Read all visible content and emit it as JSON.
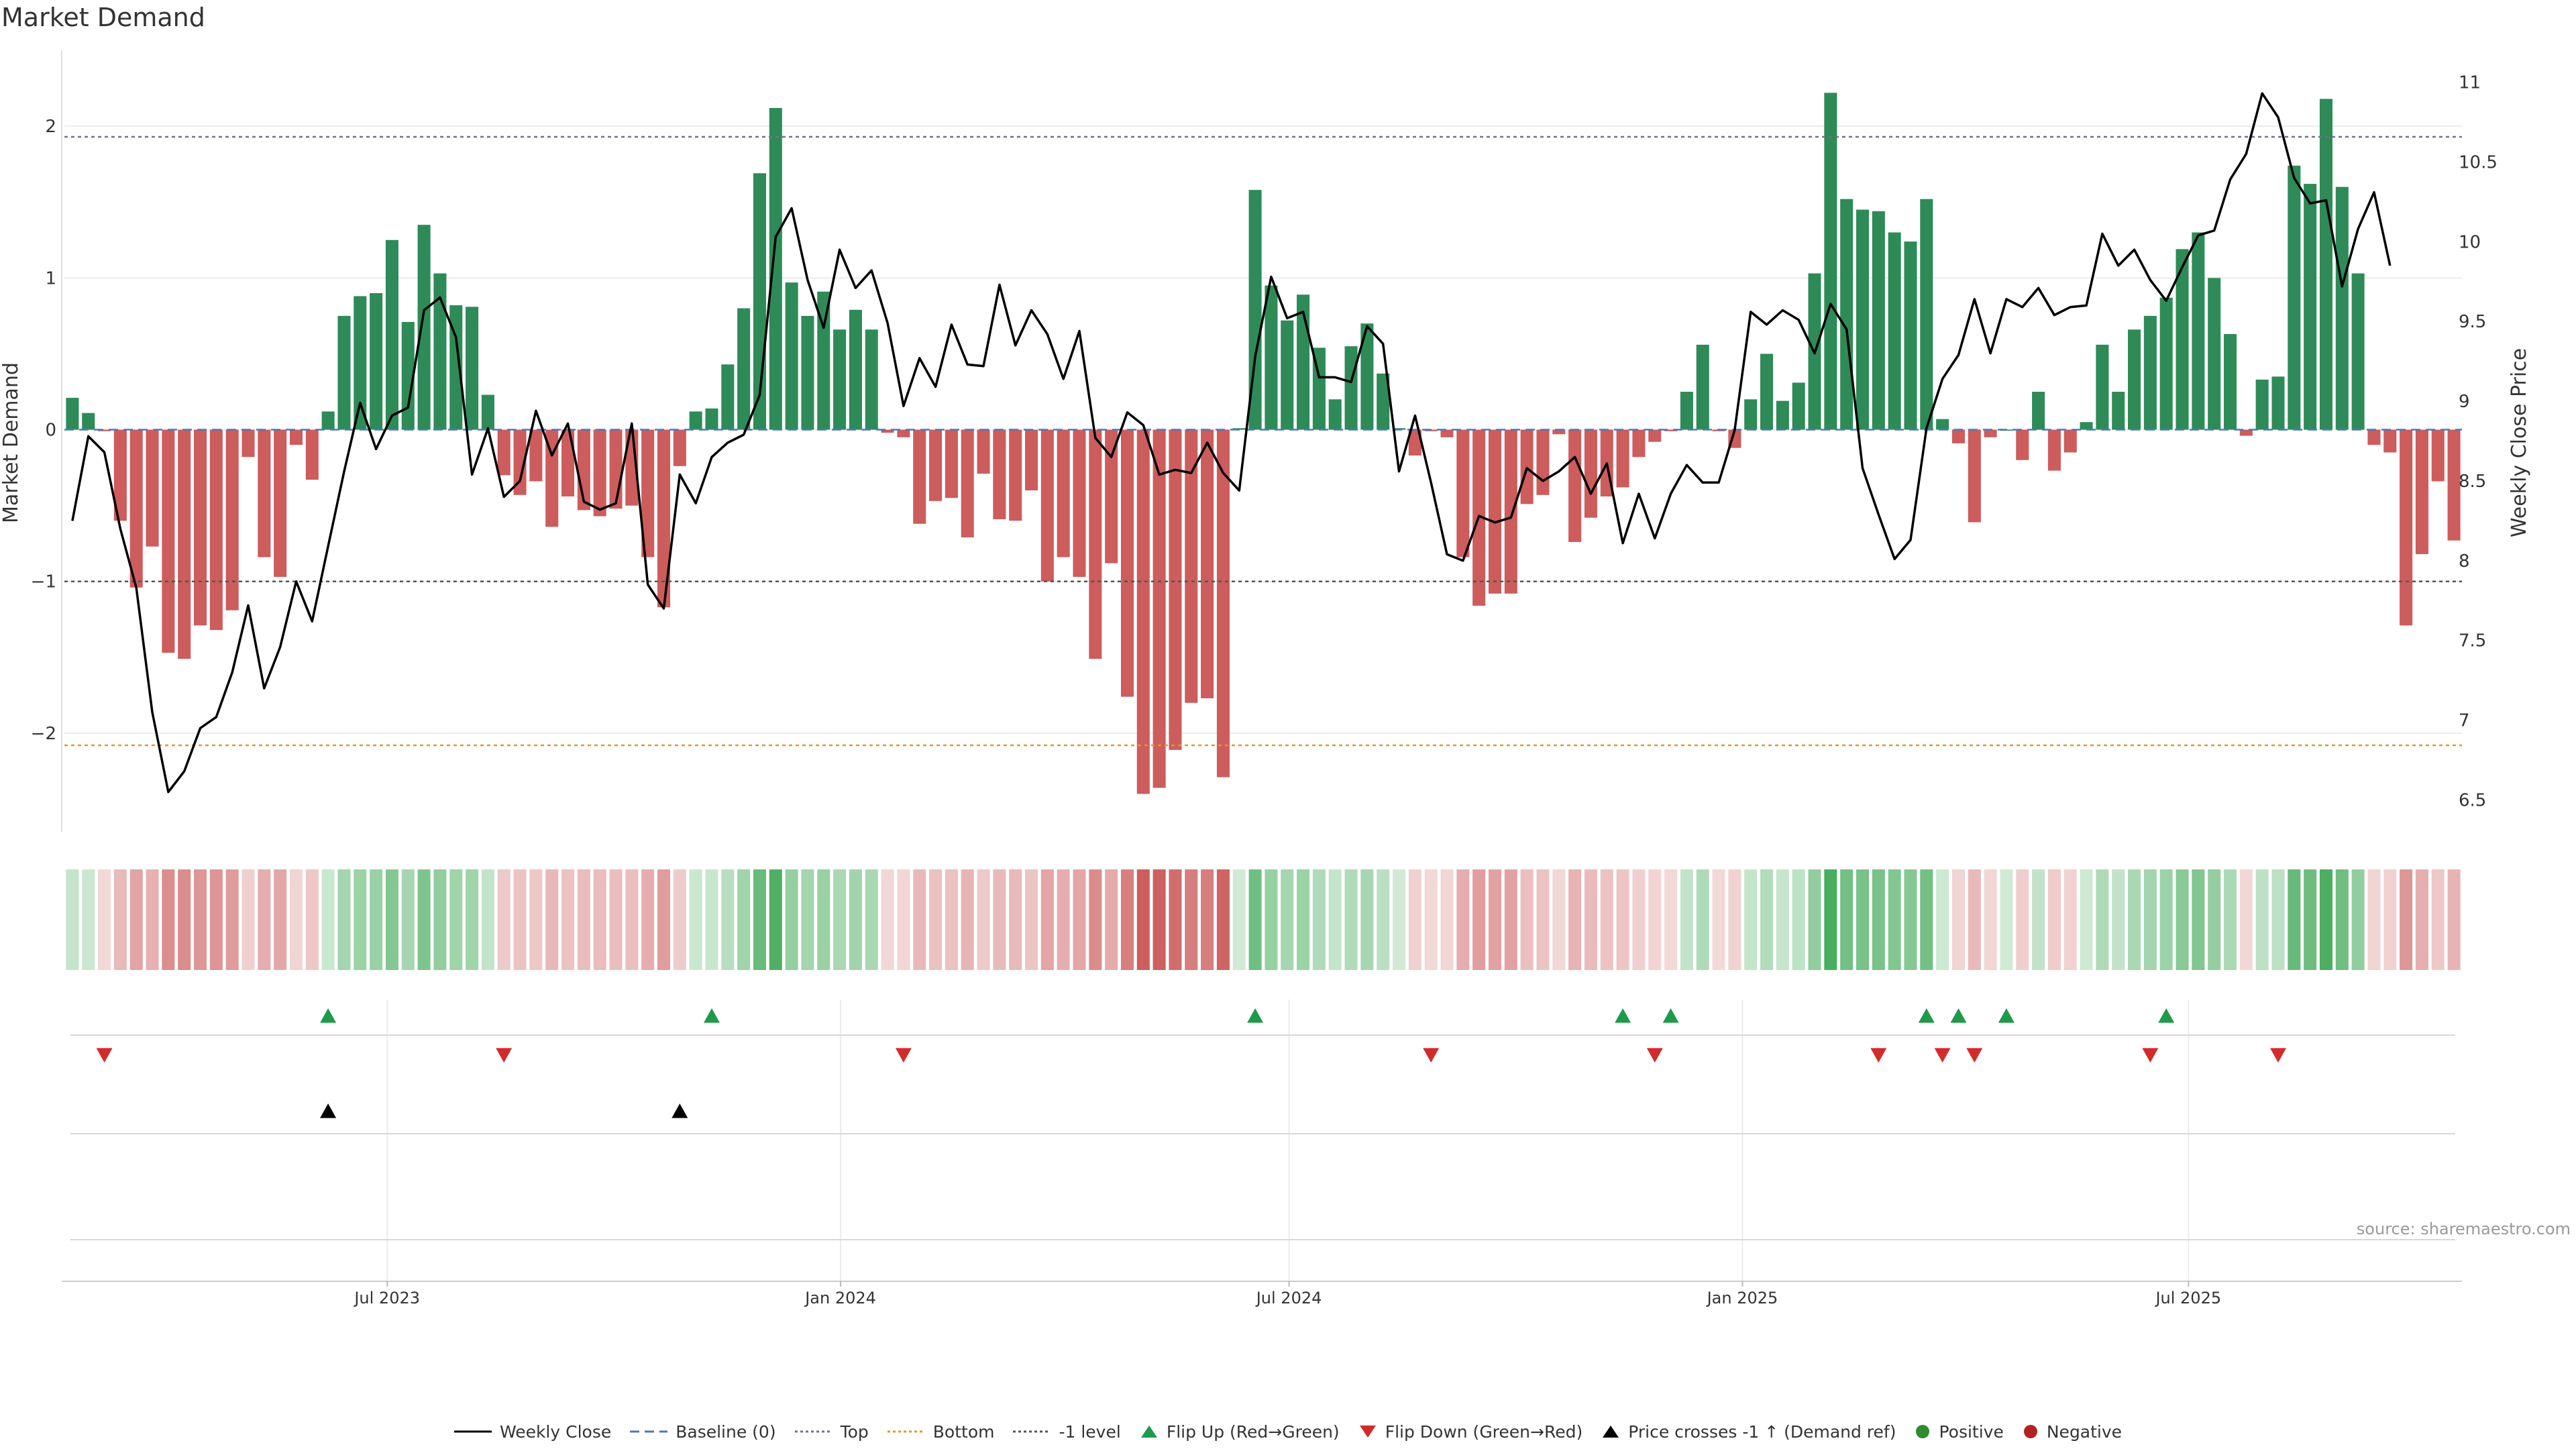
{
  "title": "Market Demand",
  "source": "source: sharemaestro.com",
  "colors": {
    "positive": "#2e8b57",
    "negative": "#cd5c5c",
    "price": "#000000",
    "baseline": "#4a78c0",
    "top": "#707090",
    "bottom": "#e6962d",
    "flip_up": "#1f9a4a",
    "flip_down": "#d22b2b",
    "cross": "#000000",
    "pos_dot": "#2e8b2e",
    "neg_dot": "#b22222"
  },
  "chart_data": {
    "type": "bar+line",
    "title": "Market Demand",
    "ylabel_left": "Market Demand",
    "ylabel_right": "Weekly Close Price",
    "left_ylim": [
      -2.65,
      2.5
    ],
    "left_yticks": [
      2,
      1,
      0,
      -1,
      -2
    ],
    "left_ytick_labels": [
      "2",
      "1",
      "0",
      "−1",
      "−2"
    ],
    "right_ylim": [
      6.3,
      11.2
    ],
    "right_yticks": [
      6.5,
      7,
      7.5,
      8,
      8.5,
      9,
      9.5,
      10,
      10.5,
      11
    ],
    "right_ytick_labels": [
      "6.5",
      "7",
      "7.5",
      "8",
      "8.5",
      "9",
      "9.5",
      "10",
      "10.5",
      "11"
    ],
    "x_start": "2023-02-20",
    "x_end": "2025-10-20",
    "x_ticks": [
      {
        "date": "2023-07-01",
        "label": "Jul 2023"
      },
      {
        "date": "2024-01-01",
        "label": "Jan 2024"
      },
      {
        "date": "2024-07-01",
        "label": "Jul 2024"
      },
      {
        "date": "2025-01-01",
        "label": "Jan 2025"
      },
      {
        "date": "2025-07-01",
        "label": "Jul 2025"
      }
    ],
    "levels": {
      "top": 1.93,
      "bottom": -2.08,
      "minus_one": -1,
      "baseline": 0
    },
    "demand": [
      0.21,
      0.11,
      -0.01,
      -0.6,
      -1.04,
      -0.77,
      -1.47,
      -1.51,
      -1.29,
      -1.32,
      -1.19,
      -0.18,
      -0.84,
      -0.97,
      -0.1,
      -0.33,
      0.12,
      0.75,
      0.88,
      0.9,
      1.25,
      0.71,
      1.35,
      1.03,
      0.82,
      0.81,
      0.23,
      -0.3,
      -0.43,
      -0.34,
      -0.64,
      -0.44,
      -0.53,
      -0.57,
      -0.52,
      -0.5,
      -0.84,
      -1.17,
      -0.24,
      0.12,
      0.14,
      0.43,
      0.8,
      1.69,
      2.12,
      0.97,
      0.75,
      0.91,
      0.66,
      0.79,
      0.66,
      -0.02,
      -0.05,
      -0.62,
      -0.47,
      -0.45,
      -0.71,
      -0.29,
      -0.59,
      -0.6,
      -0.4,
      -1.0,
      -0.84,
      -0.97,
      -1.51,
      -0.88,
      -1.76,
      -2.4,
      -2.36,
      -2.11,
      -1.8,
      -1.77,
      -2.29,
      0.01,
      1.58,
      0.95,
      0.72,
      0.89,
      0.54,
      0.2,
      0.55,
      0.7,
      0.37,
      0.01,
      -0.17,
      -0.01,
      -0.05,
      -0.84,
      -1.16,
      -1.08,
      -1.08,
      -0.49,
      -0.43,
      -0.03,
      -0.74,
      -0.58,
      -0.44,
      -0.38,
      -0.18,
      -0.08,
      -0.01,
      0.25,
      0.56,
      -0.01,
      -0.12,
      0.2,
      0.5,
      0.19,
      0.31,
      1.03,
      2.22,
      1.52,
      1.45,
      1.44,
      1.3,
      1.24,
      1.52,
      0.07,
      -0.09,
      -0.61,
      -0.05,
      0.0,
      -0.2,
      0.25,
      -0.27,
      -0.15,
      0.05,
      0.56,
      0.25,
      0.66,
      0.75,
      0.87,
      1.19,
      1.3,
      1.0,
      0.63,
      -0.04,
      0.33,
      0.35,
      1.74,
      1.62,
      2.18,
      1.6,
      1.03,
      -0.1,
      -0.15,
      -1.29,
      -0.82,
      -0.34,
      -0.73
    ],
    "weekly_close": [
      8.25,
      8.78,
      8.68,
      8.2,
      7.83,
      7.05,
      6.55,
      6.68,
      6.95,
      7.02,
      7.3,
      7.72,
      7.2,
      7.46,
      7.87,
      7.62,
      8.09,
      8.56,
      8.99,
      8.7,
      8.91,
      8.96,
      9.57,
      9.65,
      9.4,
      8.54,
      8.83,
      8.4,
      8.5,
      8.94,
      8.66,
      8.86,
      8.37,
      8.32,
      8.36,
      8.86,
      7.85,
      7.7,
      8.54,
      8.36,
      8.65,
      8.74,
      8.79,
      9.04,
      10.03,
      10.21,
      9.76,
      9.46,
      9.95,
      9.71,
      9.82,
      9.49,
      8.97,
      9.27,
      9.09,
      9.48,
      9.23,
      9.22,
      9.73,
      9.35,
      9.57,
      9.42,
      9.14,
      9.44,
      8.77,
      8.65,
      8.93,
      8.85,
      8.54,
      8.57,
      8.55,
      8.74,
      8.55,
      8.44,
      9.28,
      9.78,
      9.52,
      9.56,
      9.15,
      9.15,
      9.12,
      9.47,
      9.36,
      8.56,
      8.91,
      8.49,
      8.04,
      8.0,
      8.28,
      8.24,
      8.27,
      8.58,
      8.5,
      8.56,
      8.65,
      8.42,
      8.61,
      8.11,
      8.42,
      8.14,
      8.42,
      8.6,
      8.49,
      8.49,
      8.82,
      9.56,
      9.48,
      9.57,
      9.51,
      9.3,
      9.61,
      9.45,
      8.58,
      8.29,
      8.01,
      8.13,
      8.83,
      9.14,
      9.29,
      9.64,
      9.3,
      9.64,
      9.59,
      9.71,
      9.54,
      9.59,
      9.6,
      10.05,
      9.85,
      9.95,
      9.76,
      9.63,
      9.84,
      10.04,
      10.07,
      10.39,
      10.55,
      10.93,
      10.78,
      10.4,
      10.24,
      10.26,
      9.72,
      10.08,
      10.31,
      9.85
    ],
    "flip_up_weeks": [
      16,
      40,
      74,
      97,
      100,
      116,
      118,
      121,
      131
    ],
    "flip_down_weeks": [
      2,
      27,
      52,
      85,
      99,
      113,
      117,
      119,
      130,
      138
    ],
    "price_cross_weeks": [
      16,
      38
    ]
  },
  "legend": [
    {
      "key": "line",
      "label": "Weekly Close"
    },
    {
      "key": "baseline",
      "label": "Baseline (0)"
    },
    {
      "key": "top",
      "label": "Top"
    },
    {
      "key": "bottom",
      "label": "Bottom"
    },
    {
      "key": "minus_one",
      "label": "-1 level"
    },
    {
      "key": "flip_up",
      "label": "Flip Up (Red→Green)"
    },
    {
      "key": "flip_down",
      "label": "Flip Down (Green→Red)"
    },
    {
      "key": "cross",
      "label": "Price crosses -1 ↑ (Demand ref)"
    },
    {
      "key": "positive",
      "label": "Positive"
    },
    {
      "key": "negative",
      "label": "Negative"
    }
  ]
}
